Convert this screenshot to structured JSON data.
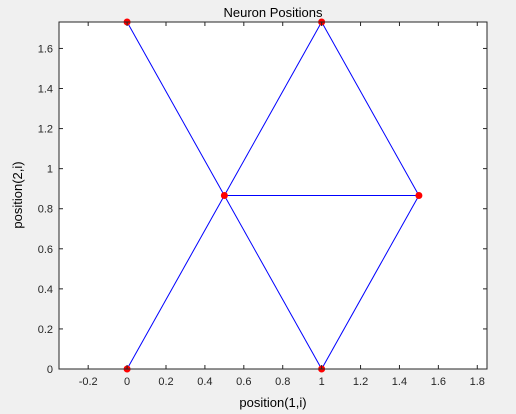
{
  "chart_data": {
    "type": "scatter",
    "title": "Neuron Positions",
    "xlabel": "position(1,i)",
    "ylabel": "position(2,i)",
    "xlim": [
      -0.35,
      1.85
    ],
    "ylim": [
      0,
      1.732
    ],
    "xticks": [
      -0.2,
      0,
      0.2,
      0.4,
      0.6,
      0.8,
      1,
      1.2,
      1.4,
      1.6,
      1.8
    ],
    "xtick_labels": [
      "-0.2",
      "0",
      "0.2",
      "0.4",
      "0.6",
      "0.8",
      "1",
      "1.2",
      "1.4",
      "1.6",
      "1.8"
    ],
    "yticks": [
      0,
      0.2,
      0.4,
      0.6,
      0.8,
      1,
      1.2,
      1.4,
      1.6
    ],
    "ytick_labels": [
      "0",
      "0.2",
      "0.4",
      "0.6",
      "0.8",
      "1",
      "1.2",
      "1.4",
      "1.6"
    ],
    "points": [
      {
        "x": 0,
        "y": 0
      },
      {
        "x": 1,
        "y": 0
      },
      {
        "x": 0.5,
        "y": 0.866
      },
      {
        "x": 1.5,
        "y": 0.866
      },
      {
        "x": 0,
        "y": 1.732
      },
      {
        "x": 1,
        "y": 1.732
      }
    ],
    "links": [
      [
        0,
        1
      ],
      [
        0,
        2
      ],
      [
        1,
        2
      ],
      [
        1,
        3
      ],
      [
        2,
        3
      ],
      [
        2,
        4
      ],
      [
        2,
        5
      ],
      [
        3,
        5
      ],
      [
        4,
        5
      ]
    ],
    "grid": false,
    "colors": {
      "point": "#ff0000",
      "line": "#0000ff",
      "axes_bg": "#ffffff",
      "figure_bg": "#f0f0f0",
      "axis": "#262626"
    }
  }
}
